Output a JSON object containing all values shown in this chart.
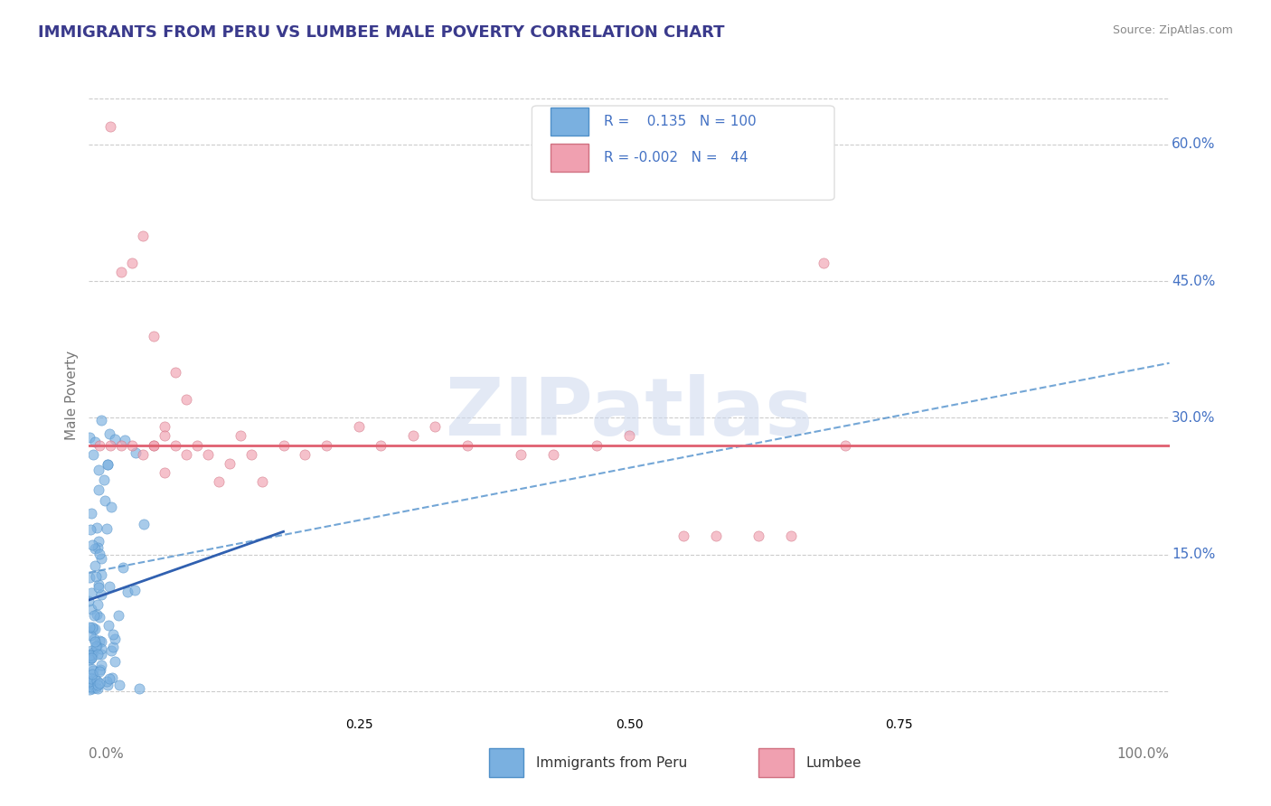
{
  "title": "IMMIGRANTS FROM PERU VS LUMBEE MALE POVERTY CORRELATION CHART",
  "source": "Source: ZipAtlas.com",
  "ylabel": "Male Poverty",
  "y_ticks": [
    0.0,
    0.15,
    0.3,
    0.45,
    0.6
  ],
  "y_tick_right_labels": [
    "15.0%",
    "30.0%",
    "45.0%",
    "60.0%"
  ],
  "y_tick_right_values": [
    0.15,
    0.3,
    0.45,
    0.6
  ],
  "x_range": [
    0,
    1.0
  ],
  "y_range": [
    -0.02,
    0.67
  ],
  "blue_R": 0.135,
  "pink_R": -0.002,
  "blue_N": 100,
  "pink_N": 44,
  "blue_color": "#7ab0e0",
  "blue_edge": "#5090c8",
  "pink_color": "#f0a0b0",
  "pink_edge": "#d07080",
  "blue_line_color": "#5090cc",
  "pink_line_color": "#e06070",
  "grid_color": "#cccccc",
  "background_color": "#ffffff",
  "title_color": "#3a3a8c",
  "source_color": "#888888",
  "tick_label_color": "#4472c4",
  "axis_label_color": "#777777",
  "watermark_color": "#ccd8ee",
  "watermark_text": "ZIPatlas",
  "blue_line_start_y": 0.13,
  "blue_line_end_y": 0.36,
  "pink_line_y": 0.27
}
